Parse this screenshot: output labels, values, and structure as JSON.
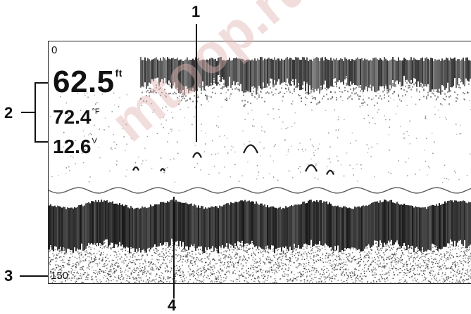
{
  "readouts": {
    "depth_value": "62.5",
    "depth_unit": "ft",
    "temperature_value": "72.4",
    "temperature_unit": "°F",
    "voltage_value": "12.6",
    "voltage_unit": "V"
  },
  "scale": {
    "top": "0",
    "bottom": "150"
  },
  "callouts": [
    "1",
    "2",
    "3",
    "4"
  ],
  "watermark": "mtoop.ru",
  "colors": {
    "sonar_dark": "#1a1a1a",
    "background": "#ffffff",
    "watermark": "#e2b4b4"
  }
}
